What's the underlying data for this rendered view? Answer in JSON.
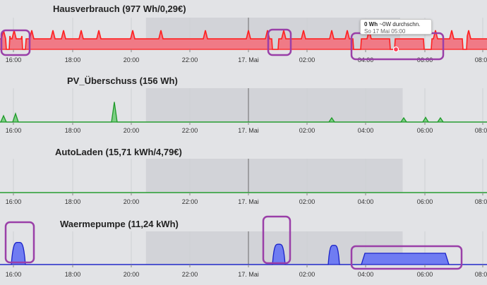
{
  "chart_data": [
    {
      "type": "area",
      "title": "Hausverbrauch (977 Wh/0,29€)",
      "color": "#ff2020",
      "fill": "#f07a86",
      "x_ticks": [
        "16:00",
        "18:00",
        "20:00",
        "22:00",
        "17. Mai",
        "02:00",
        "04:00",
        "06:00",
        "08:00"
      ],
      "grid": true,
      "shaded_periods": [
        [
          "20:30",
          "05:10"
        ]
      ],
      "tooltip": {
        "value": "0 Wh",
        "note": "~0W durchschn.",
        "date": "So 17 Mai 05:00"
      },
      "highlights": [
        "16:00",
        "01:15",
        "04:30 – 06:50"
      ]
    },
    {
      "type": "area",
      "title": "PV_Überschuss (156 Wh)",
      "color": "#1f9a2a",
      "fill": "#7dcf84",
      "x_ticks": [
        "16:00",
        "18:00",
        "20:00",
        "22:00",
        "17. Mai",
        "02:00",
        "04:00",
        "06:00",
        "08:00"
      ],
      "grid": true,
      "shaded_periods": [
        [
          "20:30",
          "05:15"
        ]
      ]
    },
    {
      "type": "area",
      "title": "AutoLaden (15,71 kWh/4,79€)",
      "color": "#1f9a2a",
      "fill": "#7dcf84",
      "x_ticks": [
        "16:00",
        "18:00",
        "20:00",
        "22:00",
        "17. Mai",
        "02:00",
        "04:00",
        "06:00",
        "08:00"
      ],
      "grid": true,
      "shaded_periods": [
        [
          "20:30",
          "05:15"
        ]
      ]
    },
    {
      "type": "area",
      "title": "Waermepumpe (11,24 kWh)",
      "color": "#1a22c8",
      "fill": "#6f7cf2",
      "x_ticks": [
        "16:00",
        "18:00",
        "20:00",
        "22:00",
        "17. Mai",
        "02:00",
        "04:00",
        "06:00",
        "08:00"
      ],
      "grid": true,
      "shaded_periods": [
        [
          "20:30",
          "05:15"
        ]
      ],
      "highlights": [
        "16:00",
        "01:15",
        "03:50 – 06:50"
      ]
    }
  ]
}
